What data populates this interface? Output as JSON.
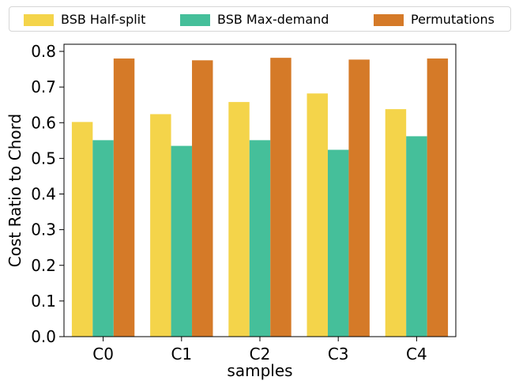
{
  "chart_data": {
    "type": "bar",
    "categories": [
      "C0",
      "C1",
      "C2",
      "C3",
      "C4"
    ],
    "series": [
      {
        "name": "BSB Half-split",
        "color": "#f4d44a",
        "values": [
          0.602,
          0.624,
          0.658,
          0.682,
          0.638
        ]
      },
      {
        "name": "BSB Max-demand",
        "color": "#45bf9a",
        "values": [
          0.551,
          0.535,
          0.551,
          0.524,
          0.562
        ]
      },
      {
        "name": "Permutations",
        "color": "#d57a28",
        "values": [
          0.78,
          0.775,
          0.782,
          0.777,
          0.78
        ]
      }
    ],
    "xlabel": "samples",
    "ylabel": "Cost Ratio to Chord",
    "ylim": [
      0,
      0.82
    ],
    "yticks": [
      0.0,
      0.1,
      0.2,
      0.3,
      0.4,
      0.5,
      0.6,
      0.7,
      0.8
    ],
    "ytick_labels": [
      "0.0",
      "0.1",
      "0.2",
      "0.3",
      "0.4",
      "0.5",
      "0.6",
      "0.7",
      "0.8"
    ],
    "legend_position": "top",
    "grid": false
  }
}
